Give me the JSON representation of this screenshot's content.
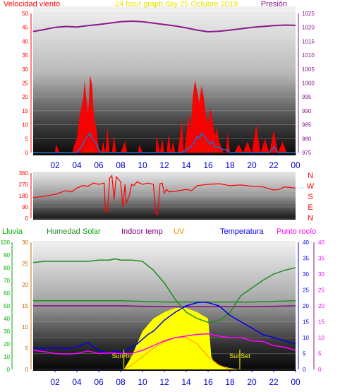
{
  "header": {
    "left": "Velocidad viento",
    "center": "24 hour graph day   25 Octubre 2019",
    "right": "Presión"
  },
  "colors": {
    "wind": "#ff0000",
    "gust_wind": "#1e6fd0",
    "gust_fill": "#22aa22",
    "pressure": "#8a1a8a",
    "direction": "#ff0000",
    "humidity": "#228b22",
    "indoor_temp": "#800080",
    "temperature": "#0000ee",
    "dewpoint": "#ff00ff",
    "solar": "#ffff00",
    "uv": "#ff8c00",
    "rain": "#00aa00",
    "title_yellow": "#e6e600"
  },
  "chart_data": [
    {
      "type": "line",
      "name": "wind-pressure",
      "x_ticks": [
        "02",
        "04",
        "06",
        "08",
        "10",
        "12",
        "14",
        "16",
        "18",
        "20",
        "22",
        "00"
      ],
      "xlim": [
        0,
        24
      ],
      "y_left_ticks": [
        "0",
        "5",
        "10",
        "15",
        "20",
        "25",
        "30",
        "35",
        "40",
        "45",
        "50"
      ],
      "ylim_left": [
        0,
        50
      ],
      "y_right_ticks": [
        "975",
        "980",
        "985",
        "990",
        "995",
        "1000",
        "1005",
        "1010",
        "1015",
        "1020",
        "1025"
      ],
      "ylim_right": [
        975,
        1025
      ],
      "pressure": {
        "x": [
          0,
          1,
          2,
          3,
          4,
          5,
          6,
          7,
          8,
          9,
          10,
          11,
          12,
          13,
          14,
          15,
          16,
          17,
          18,
          19,
          20,
          21,
          22,
          23,
          24
        ],
        "values": [
          1018.5,
          1019.2,
          1020,
          1020.3,
          1020.1,
          1020.6,
          1021,
          1021.5,
          1022,
          1022.2,
          1022,
          1021.5,
          1021,
          1020.5,
          1019.8,
          1019,
          1018.4,
          1018.6,
          1019,
          1019.5,
          1020,
          1020.3,
          1020.6,
          1020.8,
          1020.7
        ]
      },
      "wind_gust": {
        "x": [
          0,
          2.0,
          2.1,
          2.4,
          2.5,
          3.6,
          3.7,
          4.0,
          4.2,
          4.6,
          4.7,
          4.8,
          5.0,
          5.1,
          5.2,
          5.4,
          5.5,
          5.6,
          5.8,
          6.0,
          6.2,
          6.4,
          6.6,
          6.8,
          7.0,
          7.2,
          7.4,
          7.6,
          7.8,
          8.0,
          8.4,
          8.6,
          9.6,
          9.7,
          10.0,
          10.2,
          10.4,
          11.2,
          11.3,
          11.6,
          11.8,
          12.0,
          12.2,
          12.4,
          12.6,
          12.8,
          13.0,
          13.2,
          13.4,
          13.6,
          13.8,
          14.0,
          14.2,
          14.4,
          14.6,
          14.8,
          15.0,
          15.2,
          15.4,
          15.6,
          15.8,
          16.0,
          16.2,
          16.4,
          16.6,
          16.8,
          17.0,
          17.2,
          17.4,
          17.6,
          17.8,
          18.0,
          18.4,
          18.8,
          19.2,
          19.6,
          20.0,
          20.4,
          20.8,
          21.2,
          21.6,
          22.0,
          22.4,
          22.8,
          23.2,
          23.6,
          24
        ],
        "values": [
          0,
          0,
          3,
          0,
          0,
          0,
          2,
          5,
          12,
          20,
          26,
          22,
          14,
          18,
          28,
          24,
          16,
          12,
          8,
          2,
          0,
          4,
          0,
          9,
          0,
          0,
          6,
          0,
          0,
          0,
          4,
          0,
          0,
          3,
          0,
          0,
          0,
          0,
          6,
          0,
          5,
          0,
          0,
          7,
          0,
          4,
          0,
          0,
          5,
          12,
          0,
          6,
          14,
          8,
          20,
          26,
          22,
          18,
          24,
          20,
          14,
          10,
          16,
          12,
          6,
          9,
          4,
          2,
          0,
          0,
          7,
          0,
          0,
          3,
          0,
          4,
          0,
          10,
          0,
          5,
          0,
          8,
          0,
          4,
          0,
          0,
          0
        ]
      },
      "wind_avg": {
        "x": [
          0,
          4.0,
          4.4,
          4.8,
          5.0,
          5.2,
          5.4,
          5.6,
          5.8,
          6.0,
          6.2,
          13.6,
          14.0,
          14.4,
          14.8,
          15.0,
          15.2,
          15.4,
          15.6,
          15.8,
          16.0,
          16.2,
          16.4,
          16.6,
          17.0,
          17.4,
          17.8,
          18.0,
          21.6,
          22.0,
          22.4,
          24
        ],
        "values": [
          0,
          0,
          2,
          5,
          6,
          7,
          5,
          4,
          3,
          1,
          0,
          0,
          1,
          2,
          4,
          6,
          5,
          7,
          6,
          5,
          4,
          3,
          4,
          2,
          2,
          1,
          1,
          0,
          0,
          2,
          0,
          0
        ]
      },
      "wind_fill": {
        "x": [
          0,
          4.6,
          4.8,
          5.0,
          5.2,
          5.4,
          5.6,
          6.0,
          14.4,
          14.6,
          15.0,
          15.2,
          15.6,
          16.0,
          16.4,
          16.8,
          17.0,
          24
        ],
        "values": [
          0,
          0,
          2,
          3,
          4,
          3,
          1,
          0,
          0,
          2,
          4,
          3,
          5,
          3,
          2,
          1,
          0,
          0
        ]
      }
    },
    {
      "type": "line",
      "name": "wind-direction",
      "x_ticks": [],
      "xlim": [
        0,
        24
      ],
      "y_left_ticks": [
        "0",
        "90",
        "180",
        "270",
        "360"
      ],
      "ylim_left": [
        0,
        360
      ],
      "direction_labels": [
        "N",
        "W",
        "S",
        "E",
        "N"
      ],
      "direction": {
        "x": [
          0,
          0.5,
          1,
          2,
          3,
          3.5,
          4,
          4.5,
          5,
          5.5,
          6,
          6.5,
          6.6,
          6.8,
          7,
          7.2,
          7.4,
          7.6,
          8,
          8.2,
          8.4,
          8.5,
          8.8,
          9,
          9.2,
          9.5,
          10,
          10.5,
          11,
          11.2,
          11.4,
          11.6,
          11.8,
          12,
          12.2,
          12.4,
          13,
          14,
          14.5,
          15,
          16,
          17,
          18,
          19,
          20,
          21,
          22,
          22.5,
          23,
          24
        ],
        "values": [
          165,
          170,
          175,
          190,
          220,
          210,
          240,
          260,
          255,
          280,
          270,
          280,
          60,
          50,
          320,
          340,
          150,
          330,
          290,
          90,
          270,
          120,
          180,
          270,
          260,
          290,
          270,
          280,
          270,
          40,
          30,
          275,
          280,
          200,
          230,
          210,
          215,
          230,
          220,
          260,
          270,
          275,
          260,
          265,
          255,
          250,
          225,
          230,
          250,
          240
        ]
      }
    },
    {
      "type": "line",
      "name": "temp-humidity-solar",
      "header_labels": [
        "Lluvia",
        "Humedad",
        "Solar",
        "Indoor temp",
        "UV",
        "Temperatura",
        "Punto rocío"
      ],
      "x_ticks": [
        "02",
        "04",
        "06",
        "08",
        "10",
        "12",
        "14",
        "16",
        "18",
        "20",
        "22",
        "00"
      ],
      "xlim": [
        0,
        24
      ],
      "y1_ticks": [
        "0",
        "10",
        "20",
        "30",
        "40",
        "50",
        "60",
        "70",
        "80",
        "90",
        "100"
      ],
      "ylim_y1": [
        0,
        100
      ],
      "y2_ticks": [
        "0",
        "5",
        "10",
        "15",
        "20",
        "25",
        "30"
      ],
      "ylim_y2": [
        0,
        30
      ],
      "y3_ticks": [
        "0",
        "5",
        "10",
        "15",
        "20",
        "25",
        "30",
        "35",
        "40"
      ],
      "ylim_y3": [
        0,
        40
      ],
      "y4_ticks": [
        "0",
        "5",
        "10",
        "15",
        "20",
        "25",
        "30",
        "35",
        "40"
      ],
      "ylim_y4": [
        0,
        40
      ],
      "annotations": [
        "SunRise",
        "SunSet"
      ],
      "sunrise_x": 8.3,
      "sunset_x": 18.9,
      "humidity": {
        "x": [
          0,
          1,
          2,
          3,
          4,
          5,
          6,
          7,
          7.5,
          8,
          9,
          10,
          11,
          12,
          13,
          14,
          15,
          16,
          17,
          18,
          19,
          20,
          21,
          22,
          23,
          24
        ],
        "values": [
          84,
          85,
          85,
          85,
          85,
          85,
          86,
          86,
          87,
          86,
          86,
          85,
          78,
          68,
          55,
          45,
          40,
          37,
          38,
          45,
          58,
          64,
          70,
          75,
          78,
          80
        ]
      },
      "indoor_temp": {
        "x": [
          0,
          4,
          8,
          12,
          16,
          20,
          24
        ],
        "values": [
          15,
          15,
          15,
          14.8,
          14.8,
          14.8,
          15
        ]
      },
      "humidity_indoor": {
        "x": [
          0,
          4,
          8,
          12,
          16,
          20,
          24
        ],
        "values": [
          54,
          54,
          54,
          53,
          53,
          53,
          54
        ]
      },
      "temperature": {
        "x": [
          0,
          1,
          2,
          3,
          4,
          5,
          5.5,
          6,
          7,
          7.5,
          8,
          8.5,
          9,
          9.5,
          10,
          10.5,
          11,
          12,
          13,
          14,
          15,
          15.5,
          16,
          17,
          18,
          19,
          20,
          21,
          22,
          23,
          24
        ],
        "values": [
          6.8,
          6.6,
          6.8,
          6.5,
          7,
          8.5,
          7,
          6,
          5,
          6,
          5,
          6,
          7,
          8,
          9.5,
          11,
          12,
          15.5,
          18,
          20,
          21,
          21.2,
          21,
          20,
          17,
          15,
          13,
          11,
          10,
          9,
          8
        ]
      },
      "dewpoint": {
        "x": [
          0,
          1,
          2,
          3,
          4,
          5,
          6,
          7,
          8,
          9,
          10,
          11,
          12,
          13,
          14,
          15,
          16,
          17,
          18,
          19,
          20,
          21,
          22,
          23,
          24
        ],
        "values": [
          6,
          5.6,
          5,
          4.8,
          5,
          5.8,
          5,
          5.2,
          5,
          5,
          6,
          7.5,
          9,
          10,
          10.5,
          11,
          11.2,
          10.5,
          10,
          10,
          9,
          8.8,
          7.5,
          7,
          6
        ]
      },
      "solar": {
        "x": [
          8.3,
          9,
          10,
          11,
          12,
          13,
          14,
          15,
          16,
          16.3,
          16.5,
          17,
          18,
          18.9
        ],
        "values": [
          0,
          3,
          9,
          12,
          13.5,
          14.5,
          14.5,
          13.5,
          12,
          3,
          2,
          1,
          0.3,
          0
        ]
      },
      "uv": {
        "x": [
          8.3,
          9,
          10,
          11,
          12,
          13,
          14,
          15,
          16,
          17,
          18
        ],
        "values": [
          0,
          1,
          3,
          5,
          6.5,
          7.5,
          7.5,
          6,
          3,
          1,
          0
        ]
      }
    }
  ]
}
